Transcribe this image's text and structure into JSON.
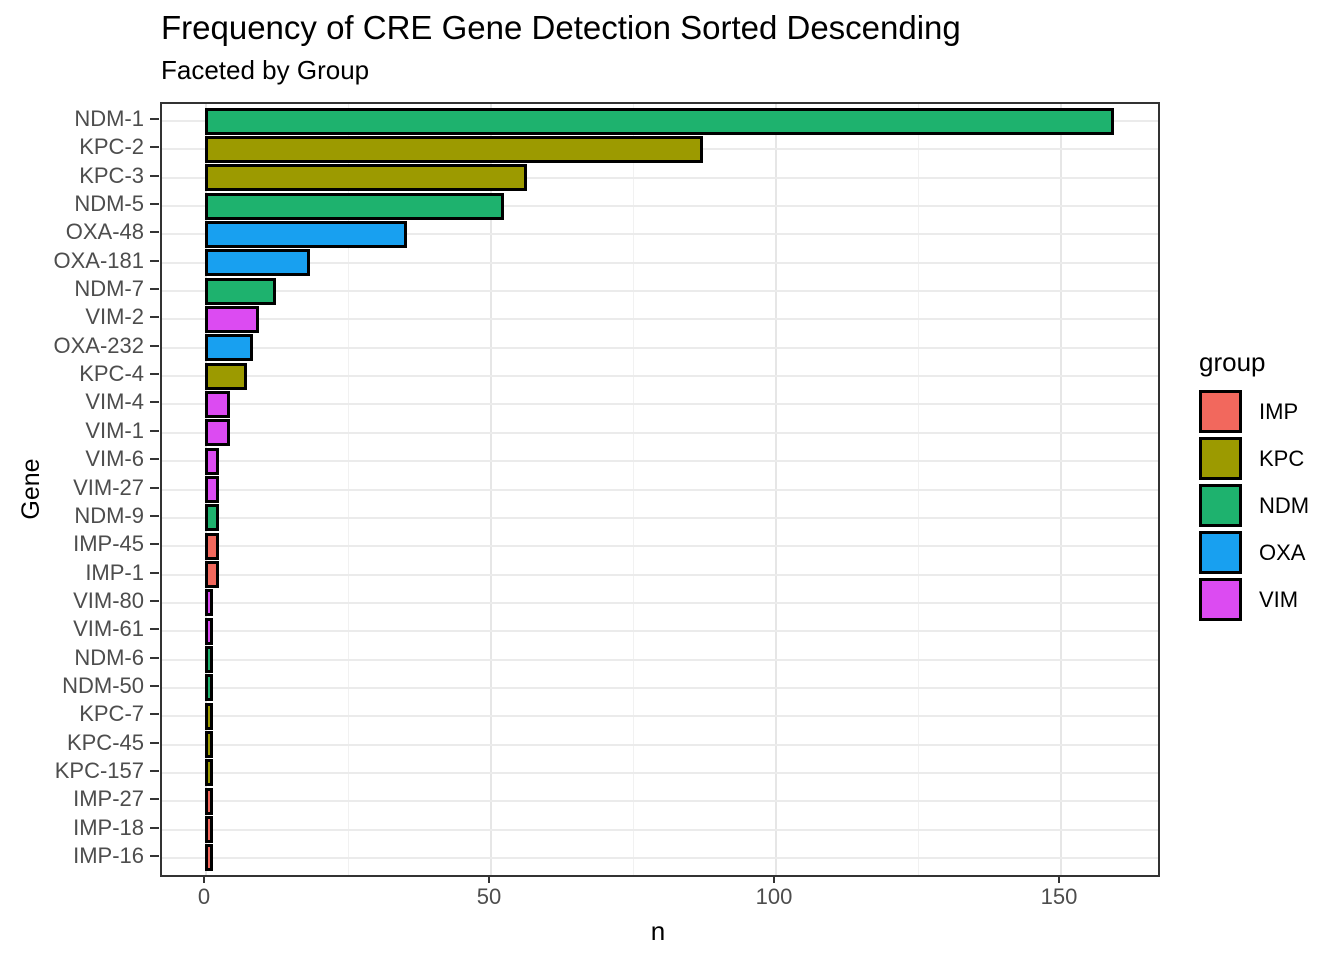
{
  "title": "Frequency of CRE Gene Detection Sorted Descending",
  "subtitle": "Faceted by Group",
  "axes": {
    "x_title": "n",
    "y_title": "Gene",
    "x_tick_labels": [
      "0",
      "50",
      "100",
      "150"
    ]
  },
  "legend": {
    "title": "group",
    "entries": [
      {
        "label": "IMP",
        "color": "#F2685D"
      },
      {
        "label": "KPC",
        "color": "#9C9A00"
      },
      {
        "label": "NDM",
        "color": "#1EB26E"
      },
      {
        "label": "OXA",
        "color": "#18A0F0"
      },
      {
        "label": "VIM",
        "color": "#DC4BF2"
      }
    ]
  },
  "chart_data": {
    "type": "bar",
    "orientation": "horizontal",
    "title": "Frequency of CRE Gene Detection Sorted Descending",
    "subtitle": "Faceted by Group",
    "xlabel": "n",
    "ylabel": "Gene",
    "xlim": [
      -7.7,
      167
    ],
    "x_major_ticks": [
      0,
      50,
      100,
      150
    ],
    "x_minor_gridlines": [
      25,
      75,
      125
    ],
    "grid": true,
    "legend_title": "group",
    "legend_position": "right",
    "bar_outline_color": "#000000",
    "categories": [
      "NDM-1",
      "KPC-2",
      "KPC-3",
      "NDM-5",
      "OXA-48",
      "OXA-181",
      "NDM-7",
      "VIM-2",
      "OXA-232",
      "KPC-4",
      "VIM-4",
      "VIM-1",
      "VIM-6",
      "VIM-27",
      "NDM-9",
      "IMP-45",
      "IMP-1",
      "VIM-80",
      "VIM-61",
      "NDM-6",
      "NDM-50",
      "KPC-7",
      "KPC-45",
      "KPC-157",
      "IMP-27",
      "IMP-18",
      "IMP-16"
    ],
    "values": [
      159,
      87,
      56,
      52,
      35,
      18,
      12,
      9,
      8,
      7,
      4,
      4,
      2,
      2,
      2,
      2,
      2,
      1,
      1,
      1,
      1,
      1,
      1,
      1,
      1,
      1,
      1
    ],
    "groups": [
      "NDM",
      "KPC",
      "KPC",
      "NDM",
      "OXA",
      "OXA",
      "NDM",
      "VIM",
      "OXA",
      "KPC",
      "VIM",
      "VIM",
      "VIM",
      "VIM",
      "NDM",
      "IMP",
      "IMP",
      "VIM",
      "VIM",
      "NDM",
      "NDM",
      "KPC",
      "KPC",
      "KPC",
      "IMP",
      "IMP",
      "IMP"
    ],
    "group_colors": {
      "IMP": "#F2685D",
      "KPC": "#9C9A00",
      "NDM": "#1EB26E",
      "OXA": "#18A0F0",
      "VIM": "#DC4BF2"
    }
  }
}
